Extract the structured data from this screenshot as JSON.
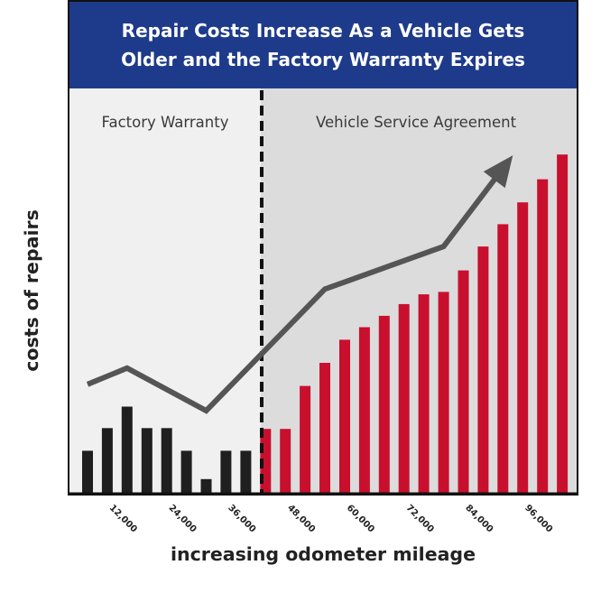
{
  "colors": {
    "title_bg": "#1e3a8a",
    "title_text": "#ffffff",
    "warranty_bg": "#f0f0f0",
    "service_bg": "#dcdcdc",
    "warranty_bar": "#1f1f1f",
    "service_bar": "#c8102e",
    "trend_line": "#555555",
    "axis": "#111111"
  },
  "chart_data": {
    "type": "bar",
    "title_lines": [
      "Repair Costs Increase As a Vehicle Gets",
      "Older and the Factory Warranty Expires"
    ],
    "xlabel": "increasing odometer mileage",
    "ylabel": "costs of repairs",
    "regions": [
      {
        "name": "Factory Warranty"
      },
      {
        "name": "Vehicle Service Agreement"
      }
    ],
    "divider_after_bar": 9,
    "x_ticks": [
      "12,000",
      "24,000",
      "36,000",
      "48,000",
      "60,000",
      "72,000",
      "84,000",
      "96,000"
    ],
    "tick_after_bar": [
      2,
      5,
      8,
      11,
      14,
      17,
      20,
      23
    ],
    "ylim": [
      0,
      100
    ],
    "bars": [
      {
        "value": 10.6,
        "group": "warranty"
      },
      {
        "value": 16.2,
        "group": "warranty"
      },
      {
        "value": 21.5,
        "group": "warranty"
      },
      {
        "value": 16.2,
        "group": "warranty"
      },
      {
        "value": 16.2,
        "group": "warranty"
      },
      {
        "value": 10.6,
        "group": "warranty"
      },
      {
        "value": 3.6,
        "group": "warranty"
      },
      {
        "value": 10.6,
        "group": "warranty"
      },
      {
        "value": 10.6,
        "group": "warranty"
      },
      {
        "value": 16.0,
        "group": "service"
      },
      {
        "value": 16.0,
        "group": "service"
      },
      {
        "value": 26.6,
        "group": "service"
      },
      {
        "value": 32.3,
        "group": "service"
      },
      {
        "value": 38.0,
        "group": "service"
      },
      {
        "value": 41.1,
        "group": "service"
      },
      {
        "value": 43.9,
        "group": "service"
      },
      {
        "value": 46.8,
        "group": "service"
      },
      {
        "value": 49.2,
        "group": "service"
      },
      {
        "value": 49.8,
        "group": "service"
      },
      {
        "value": 55.1,
        "group": "service"
      },
      {
        "value": 61.0,
        "group": "service"
      },
      {
        "value": 66.5,
        "group": "service"
      },
      {
        "value": 71.9,
        "group": "service"
      },
      {
        "value": 77.6,
        "group": "service"
      },
      {
        "value": 83.7,
        "group": "service"
      }
    ],
    "trend_line": {
      "points": [
        {
          "x": 0.0,
          "y": 27.0
        },
        {
          "x": 2.0,
          "y": 31.0
        },
        {
          "x": 6.0,
          "y": 20.5
        },
        {
          "x": 12.0,
          "y": 50.5
        },
        {
          "x": 18.0,
          "y": 61.0
        },
        {
          "x": 21.5,
          "y": 83.5
        }
      ],
      "arrow_head": true
    }
  }
}
